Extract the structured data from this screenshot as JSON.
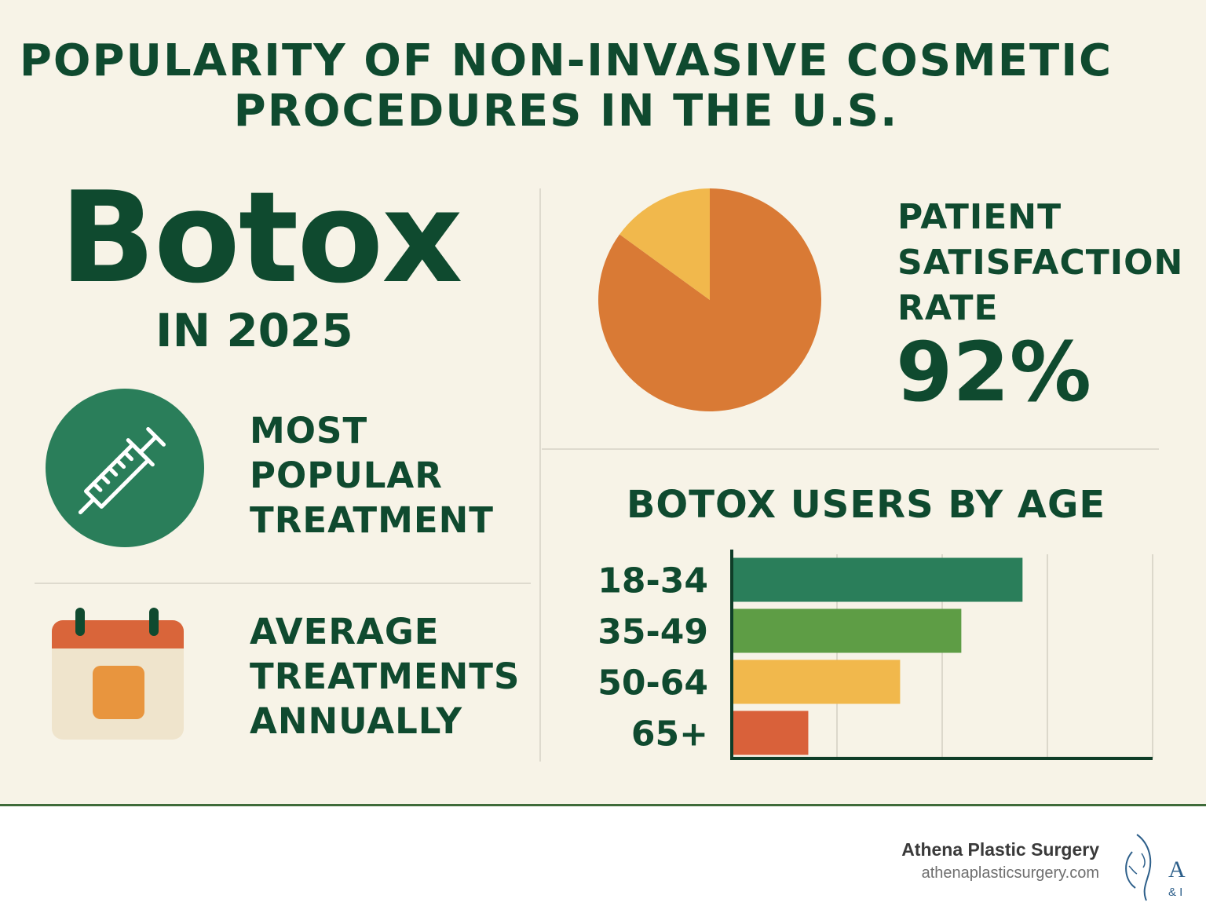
{
  "title": {
    "line1": "POPULARITY OF NON-INVASIVE COSMETIC",
    "line2": "PROCEDURES IN THE U.S."
  },
  "left": {
    "procedure": "Botox",
    "year_label": "IN 2025",
    "popular_lines": [
      "MOST",
      "POPULAR",
      "TREATMENT"
    ],
    "average_lines": [
      "AVERAGE",
      "TREATMENTS",
      "ANNUALLY"
    ],
    "icons": [
      "syringe-icon",
      "calendar-icon"
    ]
  },
  "satisfaction": {
    "lines": [
      "PATIENT",
      "SATISFACTION",
      "RATE"
    ],
    "value": "92%"
  },
  "chart_data": [
    {
      "type": "pie",
      "values": [
        85,
        15
      ],
      "colors": [
        "#d97a35",
        "#f1b84c"
      ]
    },
    {
      "type": "bar",
      "orientation": "horizontal",
      "title": "BOTOX USERS BY AGE",
      "categories": [
        "18-34",
        "35-49",
        "50-64",
        "65+"
      ],
      "values": [
        38,
        30,
        22,
        10
      ],
      "colors": [
        "#2a7e5a",
        "#5e9d45",
        "#f1b84c",
        "#d9613a"
      ],
      "xlim": [
        0,
        55
      ],
      "grid": true
    }
  ],
  "footer": {
    "brand_name": "Athena Plastic Surgery",
    "brand_url": "athenaplasticsurgery.com",
    "logo_letter": "A",
    "logo_sub": "& I",
    "colors": {
      "border": "#3f6b3a",
      "logo": "#2d5f8a"
    }
  }
}
